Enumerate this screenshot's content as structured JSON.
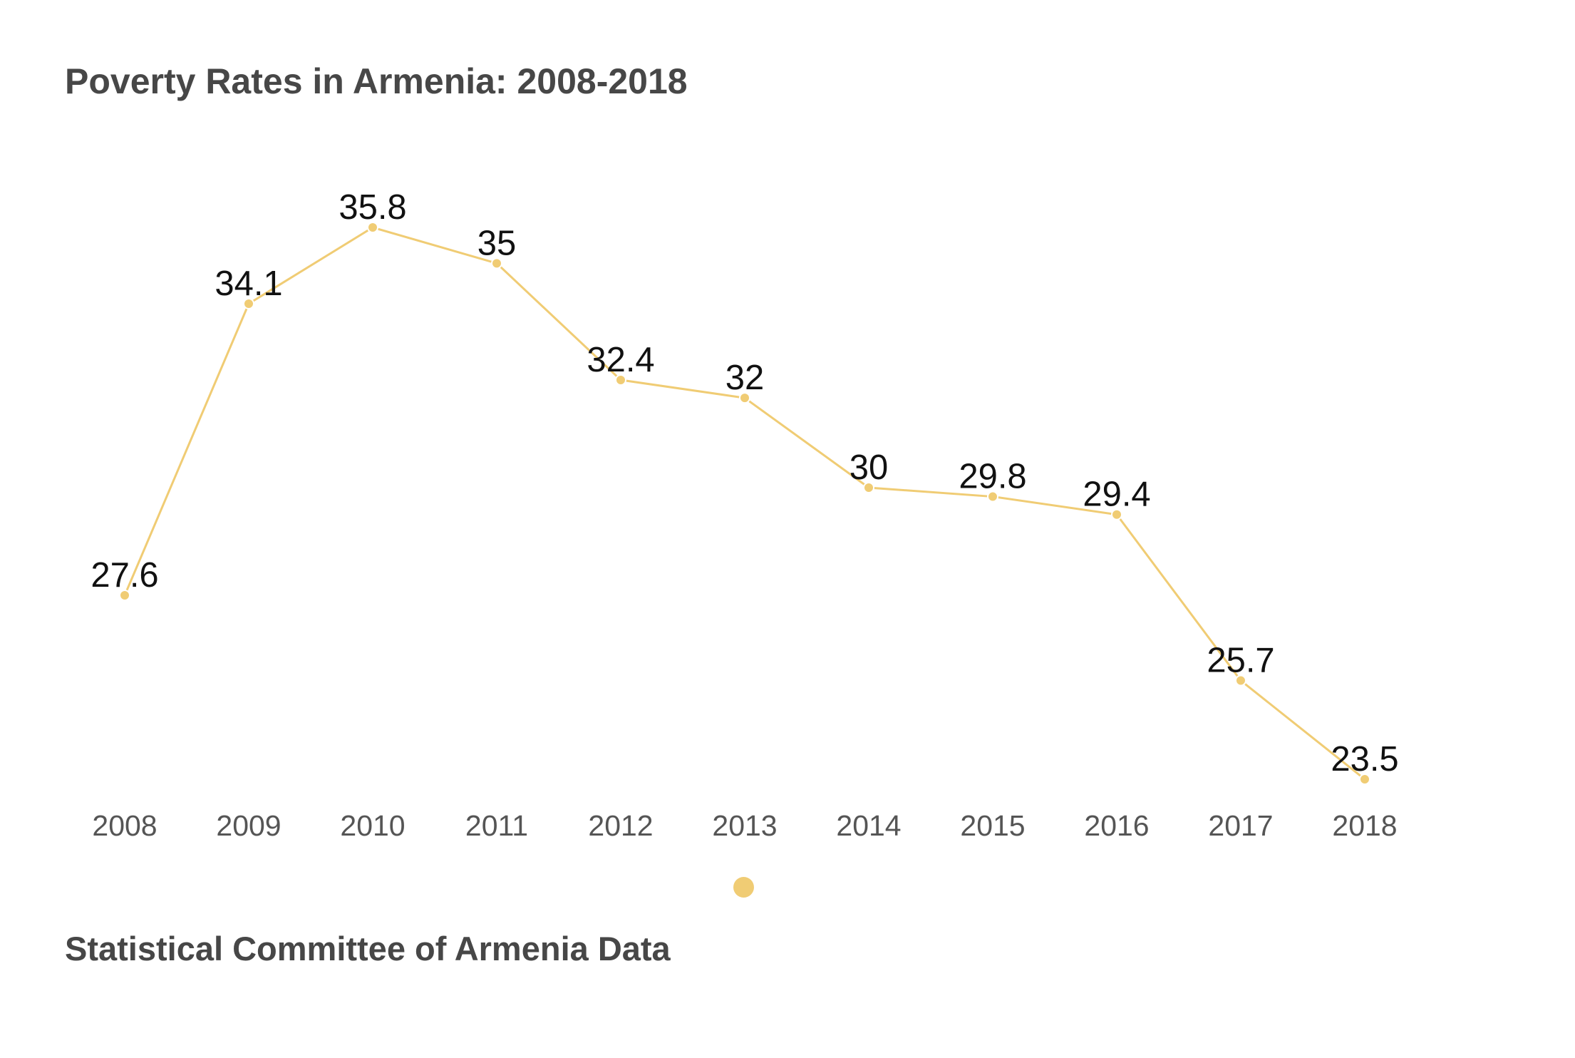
{
  "title": "Poverty Rates in Armenia: 2008-2018",
  "footer": "Statistical Committee of Armenia Data",
  "colors": {
    "series": "#F0CC74",
    "title_text": "#474747",
    "label_text": "#111111",
    "tick_text": "#555555"
  },
  "chart_data": {
    "type": "line",
    "title": "Poverty Rates in Armenia: 2008-2018",
    "xlabel": "",
    "ylabel": "",
    "x": [
      "2008",
      "2009",
      "2010",
      "2011",
      "2012",
      "2013",
      "2014",
      "2015",
      "2016",
      "2017",
      "2018"
    ],
    "series": [
      {
        "values": [
          27.6,
          34.1,
          35.8,
          35,
          32.4,
          32,
          30,
          29.8,
          29.4,
          25.7,
          23.5
        ],
        "labels": [
          "27.6",
          "34.1",
          "35.8",
          "35",
          "32.4",
          "32",
          "30",
          "29.8",
          "29.4",
          "25.7",
          "23.5"
        ],
        "color": "#F0CC74"
      }
    ],
    "ylim": [
      23.5,
      35.8
    ],
    "grid": false,
    "y_axis_visible": false,
    "data_labels": true,
    "legend": "bottom-center"
  }
}
